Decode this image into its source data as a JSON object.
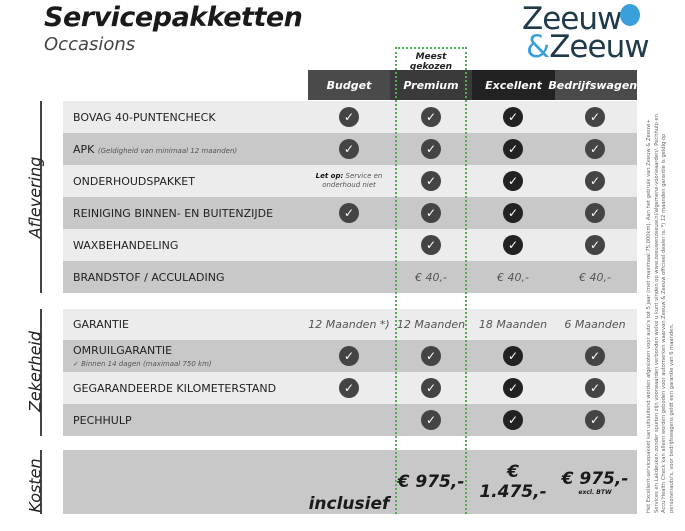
{
  "header": {
    "title": "Servicepakketten",
    "subtitle": "Occasions",
    "logo_text": [
      "Zeeuw",
      "&Zeeuw"
    ],
    "most_chosen": "Meest gekozen"
  },
  "columns": [
    "Budget",
    "Premium",
    "Excellent",
    "Bedrijfswagens"
  ],
  "colors": {
    "accent_green": "#4cb050",
    "logo_blue": "#3aa0dc",
    "logo_dark": "#1f3a4a"
  },
  "sections": [
    {
      "name": "Aflevering",
      "rows": [
        {
          "label": "BOVAG 40-PUNTENCHECK",
          "values": [
            "check",
            "check",
            "check",
            "check"
          ]
        },
        {
          "label": "APK",
          "sub": "(Geldigheid van minimaal 12 maanden)",
          "values": [
            "check",
            "check",
            "check",
            "check"
          ]
        },
        {
          "label": "ONDERHOUDSPAKKET",
          "values": [
            "",
            "check",
            "check",
            "check"
          ],
          "budget_note_bold": "Let op:",
          "budget_note": "Service en onderhoud niet"
        },
        {
          "label": "REINIGING BINNEN- EN BUITENZIJDE",
          "values": [
            "check",
            "check",
            "check",
            "check"
          ]
        },
        {
          "label": "WAXBEHANDELING",
          "values": [
            "",
            "check",
            "check",
            "check"
          ]
        },
        {
          "label": "BRANDSTOF / ACCULADING",
          "values": [
            "",
            "€ 40,-",
            "€ 40,-",
            "€ 40,-"
          ]
        }
      ]
    },
    {
      "name": "Zekerheid",
      "rows": [
        {
          "label": "GARANTIE",
          "values": [
            "12 Maanden *)",
            "12 Maanden",
            "18 Maanden",
            "6 Maanden"
          ]
        },
        {
          "label": "OMRUILGARANTIE",
          "sub2": "✓  Binnen 14 dagen (maximaal 750 km)",
          "values": [
            "check",
            "check",
            "check",
            "check"
          ]
        },
        {
          "label": "GEGARANDEERDE KILOMETERSTAND",
          "values": [
            "check",
            "check",
            "check",
            "check"
          ]
        },
        {
          "label": "PECHHULP",
          "values": [
            "",
            "check",
            "check",
            "check"
          ]
        }
      ]
    },
    {
      "name": "Kosten",
      "rows": [
        {
          "label": "",
          "values": [
            "inclusief",
            "€ 975,-",
            "€ 1.475,-",
            "€ 975,-"
          ],
          "last_note": "excl. BTW"
        }
      ]
    }
  ],
  "footnote": "Het Excellent-servicepakket kan uitsluitend worden afgesloten voor auto's tot 5 jaar (met maximaal 75.000km). Aan het gebruik van Zeeuw & Zeeuw+ Services en Lakdeuken zonder spuiten zijn voorwaarden verbonden welke u kunt vinden op www.zeeuwenzeeuw.nl/algemene-voorwaarden/. Pechhulp en Accu Health Check kan alleen worden geboden voor automerken waarvan Zeeuw & Zeeuw officieel dealer is. *) 12 maanden garantie is geldig op personenauto's, voor bedrijfswagens geldt een garantie van 6 maanden."
}
